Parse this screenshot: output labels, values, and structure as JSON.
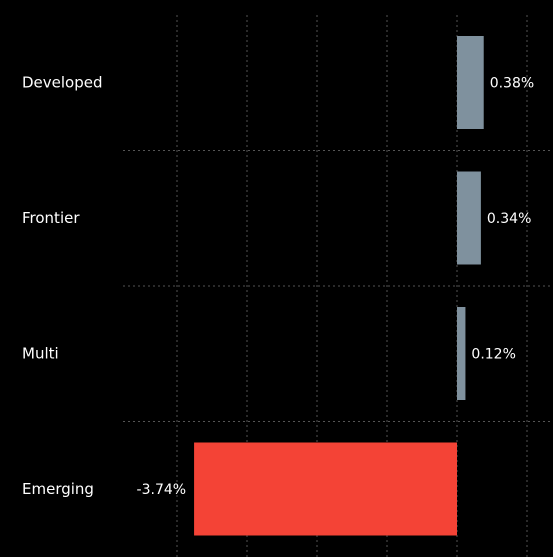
{
  "chart_data": {
    "type": "bar",
    "orientation": "horizontal",
    "categories": [
      "Developed",
      "Frontier",
      "Multi",
      "Emerging"
    ],
    "values": [
      0.38,
      0.34,
      0.12,
      -3.74
    ],
    "value_labels": [
      "0.38%",
      "0.34%",
      "0.12%",
      "-3.74%"
    ],
    "title": "",
    "xlabel": "",
    "ylabel": "",
    "xlim": [
      -4.0,
      1.0
    ],
    "grid": true,
    "legend": "none",
    "colors": {
      "background": "#000000",
      "positive_bar": "#7F919E",
      "negative_bar": "#F44336",
      "text": "#FFFFFF",
      "grid": "#555555"
    }
  }
}
